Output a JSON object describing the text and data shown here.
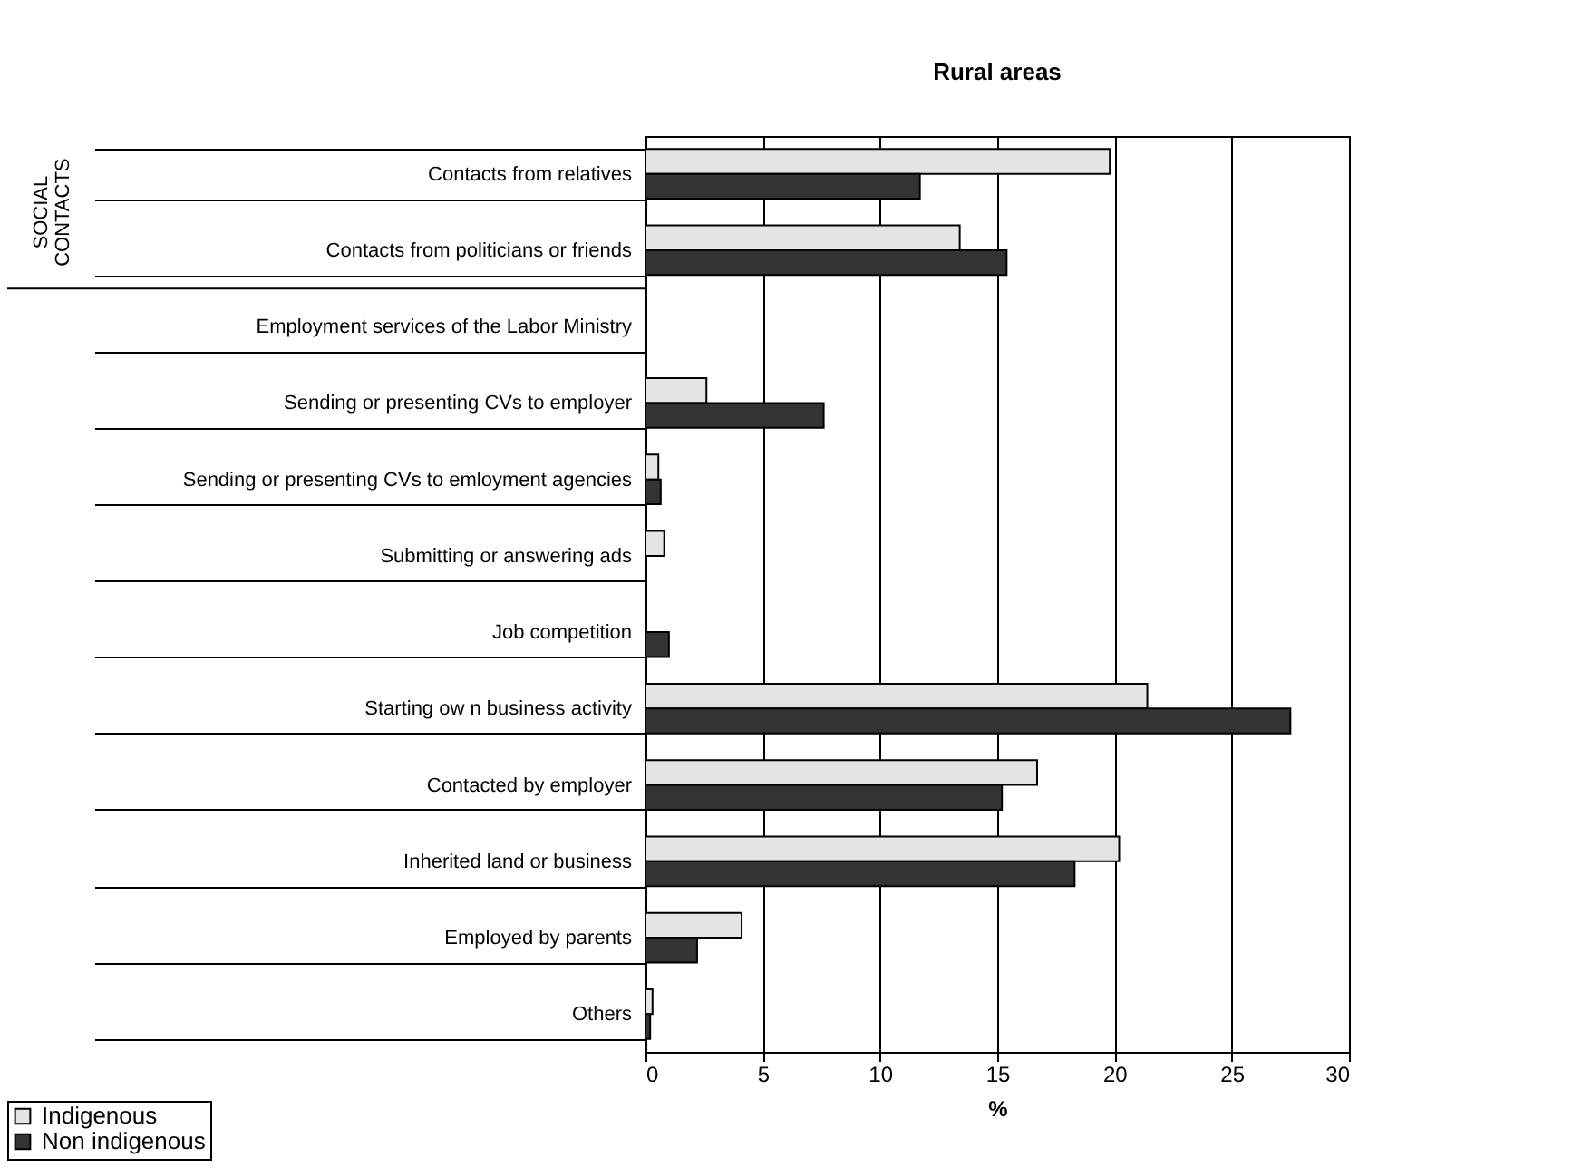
{
  "chart_data": {
    "type": "bar",
    "orientation": "horizontal",
    "title": "Rural areas",
    "xlabel": "%",
    "categories": [
      "Contacts from relatives",
      "Contacts from politicians or friends",
      "Employment services of the Labor Ministry",
      "Sending or presenting CVs to employer",
      "Sending or presenting CVs to emloyment agencies",
      "Submitting or answering ads",
      "Job competition",
      "Starting ow n business activity",
      "Contacted by employer",
      "Inherited land or business",
      "Employed by parents",
      "Others"
    ],
    "series": [
      {
        "name": "Indigenous",
        "color": "#e4e4e4",
        "values": [
          19.8,
          13.4,
          null,
          2.6,
          0.55,
          0.8,
          null,
          21.4,
          16.7,
          20.2,
          4.1,
          0.3
        ]
      },
      {
        "name": "Non indigenous",
        "color": "#333333",
        "values": [
          11.7,
          15.4,
          null,
          7.6,
          0.65,
          null,
          1.0,
          27.5,
          15.2,
          18.3,
          2.2,
          0.2
        ]
      }
    ],
    "xlim": [
      0,
      30
    ],
    "xticks": [
      0,
      5,
      10,
      15,
      20,
      25,
      30
    ],
    "grid": "x",
    "legend": "bottom left",
    "annotations": [
      "SOCIAL CONTACTS"
    ]
  }
}
